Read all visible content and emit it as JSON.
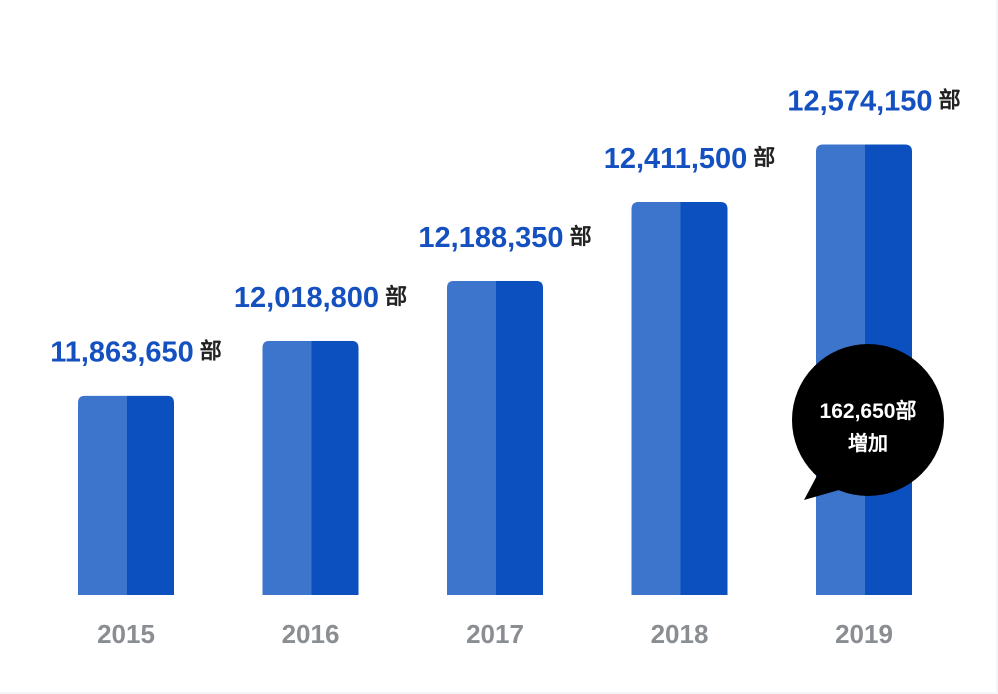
{
  "chart_data": {
    "type": "bar",
    "categories": [
      "2015",
      "2016",
      "2017",
      "2018",
      "2019"
    ],
    "values": [
      11863650,
      12018800,
      12188350,
      12411500,
      12574150
    ],
    "value_labels": [
      "11,863,650",
      "12,018,800",
      "12,188,350",
      "12,411,500",
      "12,574,150"
    ],
    "unit": "部",
    "title": "",
    "xlabel": "",
    "ylabel": "",
    "ylim": [
      11300000,
      12700000
    ],
    "grid": false,
    "legend": "none",
    "colors": {
      "bar_left": "#3d74cc",
      "bar_right": "#0c4fbe",
      "value_label": "#1450c0",
      "unit": "#222222",
      "category": "#8a8e93"
    },
    "annotation": {
      "line1": "162,650部",
      "line2": "増加",
      "category": "2019",
      "background": "#000000",
      "text_color": "#ffffff"
    }
  }
}
